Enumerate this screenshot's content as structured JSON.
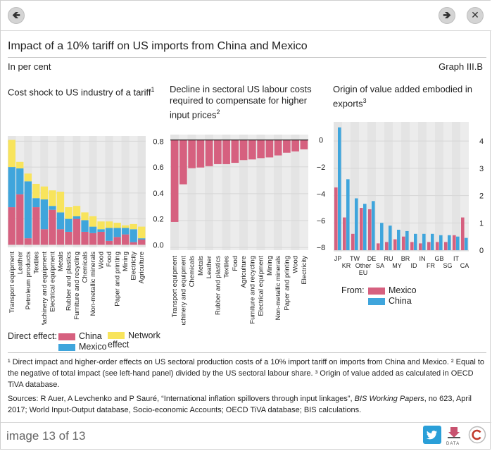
{
  "nav": {
    "prev_glyph": "🡸",
    "next_glyph": "🡺",
    "close_glyph": "✕"
  },
  "header": {
    "title": "Impact of a 10% tariff on US imports from China and Mexico",
    "unit": "In per cent",
    "graph_no": "Graph III.B"
  },
  "panels": [
    {
      "title": "Cost shock to US industry of a tariff",
      "sup": "1"
    },
    {
      "title": "Decline in sectoral US labour costs required to compensate for higher input prices",
      "sup": "2"
    },
    {
      "title": "Origin of value added embodied in exports",
      "sup": "3"
    }
  ],
  "legend1": {
    "label": "Direct effect:",
    "china": "China",
    "mexico": "Mexico",
    "network": "Network effect"
  },
  "legend3": {
    "label": "From:",
    "mexico": "Mexico",
    "china": "China"
  },
  "footnotes": [
    "¹  Direct impact and higher-order effects on US sectoral production costs of a 10% import tariff on imports from China and Mexico.   ²  Equal to the negative of total impact (see left-hand panel) divided by the US sectoral labour share.   ³  Origin of value added as calculated in OECD TiVA database."
  ],
  "sources": {
    "prefix": "Sources: R Auer, A Levchenko and P Sauré, “International inflation spillovers through input linkages”, ",
    "italic": "BIS Working Papers",
    "suffix": ", no 623, April 2017; World Input-Output database, Socio-economic Accounts; OECD TiVA database; BIS calculations."
  },
  "footer": {
    "counter": "image 13 of 13",
    "data_label": "DATA"
  },
  "colors": {
    "china": "#d6607f",
    "mexico": "#3fa5dc",
    "network": "#f8e45c",
    "grid": "#d6d6d6",
    "band": "#e4e4e4"
  },
  "chart_data": [
    {
      "type": "bar",
      "stacked": true,
      "title": "Cost shock to US industry of a tariff",
      "categories": [
        "Transport equipment",
        "Leather",
        "Petroleum products",
        "Textiles",
        "Machinery and equipment",
        "Electrical equipment",
        "Metals",
        "Rubber and plastics",
        "Furniture and recycling",
        "Chemicals",
        "Non-metallic minerals",
        "Wood",
        "Food",
        "Paper and printing",
        "Mining",
        "Electricity",
        "Agriculture"
      ],
      "series": [
        {
          "name": "China",
          "values": [
            0.29,
            0.39,
            0.05,
            0.29,
            0.12,
            0.27,
            0.12,
            0.1,
            0.2,
            0.1,
            0.09,
            0.1,
            0.03,
            0.06,
            0.08,
            0.02,
            0.04
          ]
        },
        {
          "name": "Mexico",
          "values": [
            0.31,
            0.2,
            0.44,
            0.07,
            0.23,
            0.03,
            0.13,
            0.1,
            0.02,
            0.09,
            0.05,
            0.02,
            0.1,
            0.07,
            0.05,
            0.1,
            0.01
          ]
        },
        {
          "name": "Network effect",
          "values": [
            0.21,
            0.05,
            0.06,
            0.11,
            0.1,
            0.12,
            0.16,
            0.09,
            0.08,
            0.06,
            0.08,
            0.06,
            0.05,
            0.04,
            0.02,
            0.04,
            0.09
          ]
        }
      ],
      "ylim": [
        -0.02,
        0.84
      ],
      "yticks": [
        0.0,
        0.2,
        0.4,
        0.6,
        0.8
      ],
      "ytick_labels": [
        "0.0",
        "0.2",
        "0.4",
        "0.6",
        "0.8"
      ],
      "axis_side": "right",
      "grid": true
    },
    {
      "type": "bar",
      "title": "Decline in sectoral US labour costs required to compensate for higher input prices",
      "categories": [
        "Transport equipment",
        "Machinery and equipment",
        "Chemicals",
        "Metals",
        "Leather",
        "Rubber and plastics",
        "Textiles",
        "Food",
        "Agriculture",
        "Furniture and recycling",
        "Electrical equipment",
        "Mining",
        "Non-metallic minerals",
        "Paper and printing",
        "Wood",
        "Electricity"
      ],
      "values": [
        -6.1,
        -3.3,
        -2.1,
        -2.05,
        -1.95,
        -1.8,
        -1.8,
        -1.7,
        -1.5,
        -1.45,
        -1.35,
        -1.3,
        -1.15,
        -0.95,
        -0.85,
        -0.7
      ],
      "ylim": [
        -8.2,
        0.4
      ],
      "yticks": [
        0,
        -2,
        -4,
        -6,
        -8
      ],
      "ytick_labels": [
        "0",
        "−2",
        "−4",
        "−6",
        "−8"
      ],
      "axis_side": "right",
      "grid": true
    },
    {
      "type": "bar",
      "title": "Origin of value added embodied in exports",
      "categories": [
        "JP",
        "KR",
        "TW",
        "Other EU",
        "DE",
        "SA",
        "RU",
        "MY",
        "BR",
        "ID",
        "IN",
        "FR",
        "GB",
        "SG",
        "IT",
        "CA"
      ],
      "tick_labels_row1": [
        "JP",
        "",
        "TW",
        "",
        "DE",
        "",
        "RU",
        "",
        "BR",
        "",
        "IN",
        "",
        "GB",
        "",
        "IT",
        ""
      ],
      "tick_labels_row2": [
        "",
        "KR",
        "",
        "Other",
        "",
        "SA",
        "",
        "MY",
        "",
        "ID",
        "",
        "FR",
        "",
        "SG",
        "",
        "CA"
      ],
      "tick_labels_row3": [
        "",
        "",
        "",
        "EU",
        "",
        "",
        "",
        "",
        "",
        "",
        "",
        "",
        "",
        "",
        "",
        ""
      ],
      "series": [
        {
          "name": "Mexico",
          "values": [
            2.3,
            1.2,
            0.6,
            1.55,
            1.5,
            0.25,
            0.3,
            0.4,
            0.5,
            0.3,
            0.25,
            0.3,
            0.3,
            0.3,
            0.55,
            1.2
          ]
        },
        {
          "name": "China",
          "values": [
            4.5,
            2.6,
            1.9,
            1.7,
            1.8,
            1.0,
            0.9,
            0.75,
            0.7,
            0.6,
            0.6,
            0.6,
            0.55,
            0.55,
            0.5,
            0.45
          ]
        }
      ],
      "ylim": [
        -0.05,
        4.7
      ],
      "yticks": [
        0,
        1,
        2,
        3,
        4
      ],
      "ytick_labels": [
        "0",
        "1",
        "2",
        "3",
        "4"
      ],
      "axis_side": "right",
      "grid": true
    }
  ]
}
